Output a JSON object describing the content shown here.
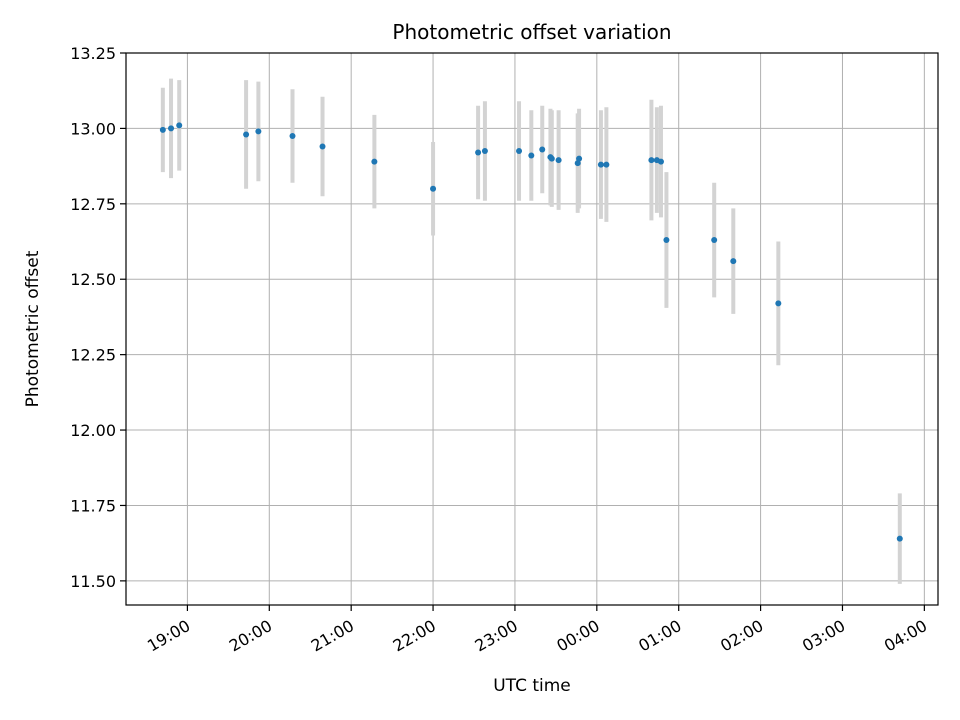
{
  "chart_data": {
    "type": "scatter",
    "title": "Photometric offset variation",
    "xlabel": "UTC time",
    "ylabel": "Photometric offset",
    "xlim": [
      "18:15",
      "04:10"
    ],
    "ylim": [
      11.42,
      13.25
    ],
    "grid": true,
    "x_ticks": [
      "19:00",
      "20:00",
      "21:00",
      "22:00",
      "23:00",
      "00:00",
      "01:00",
      "02:00",
      "03:00",
      "04:00"
    ],
    "y_ticks": [
      "11.50",
      "11.75",
      "12.00",
      "12.25",
      "12.50",
      "12.75",
      "13.00",
      "13.25"
    ],
    "colors": {
      "marker": "#1f77b4",
      "errorbar": "#d3d3d3",
      "grid": "#b0b0b0"
    },
    "points": [
      {
        "x": "18:42",
        "y": 12.995,
        "err": 0.14
      },
      {
        "x": "18:48",
        "y": 13.0,
        "err": 0.165
      },
      {
        "x": "18:54",
        "y": 13.01,
        "err": 0.15
      },
      {
        "x": "19:43",
        "y": 12.98,
        "err": 0.18
      },
      {
        "x": "19:52",
        "y": 12.99,
        "err": 0.165
      },
      {
        "x": "20:17",
        "y": 12.975,
        "err": 0.155
      },
      {
        "x": "20:39",
        "y": 12.94,
        "err": 0.165
      },
      {
        "x": "21:17",
        "y": 12.89,
        "err": 0.155
      },
      {
        "x": "22:00",
        "y": 12.8,
        "err": 0.155
      },
      {
        "x": "22:33",
        "y": 12.92,
        "err": 0.155
      },
      {
        "x": "22:38",
        "y": 12.925,
        "err": 0.165
      },
      {
        "x": "23:03",
        "y": 12.925,
        "err": 0.165
      },
      {
        "x": "23:12",
        "y": 12.91,
        "err": 0.15
      },
      {
        "x": "23:20",
        "y": 12.93,
        "err": 0.145
      },
      {
        "x": "23:26",
        "y": 12.905,
        "err": 0.16
      },
      {
        "x": "23:27",
        "y": 12.9,
        "err": 0.16
      },
      {
        "x": "23:32",
        "y": 12.895,
        "err": 0.165
      },
      {
        "x": "23:46",
        "y": 12.885,
        "err": 0.165
      },
      {
        "x": "23:47",
        "y": 12.9,
        "err": 0.165
      },
      {
        "x": "00:03",
        "y": 12.88,
        "err": 0.18
      },
      {
        "x": "00:07",
        "y": 12.88,
        "err": 0.19
      },
      {
        "x": "00:40",
        "y": 12.895,
        "err": 0.2
      },
      {
        "x": "00:44",
        "y": 12.895,
        "err": 0.175
      },
      {
        "x": "00:47",
        "y": 12.89,
        "err": 0.185
      },
      {
        "x": "00:51",
        "y": 12.63,
        "err": 0.225
      },
      {
        "x": "01:26",
        "y": 12.63,
        "err": 0.19
      },
      {
        "x": "01:40",
        "y": 12.56,
        "err": 0.175
      },
      {
        "x": "02:13",
        "y": 12.42,
        "err": 0.205
      },
      {
        "x": "03:42",
        "y": 11.64,
        "err": 0.15
      }
    ]
  }
}
